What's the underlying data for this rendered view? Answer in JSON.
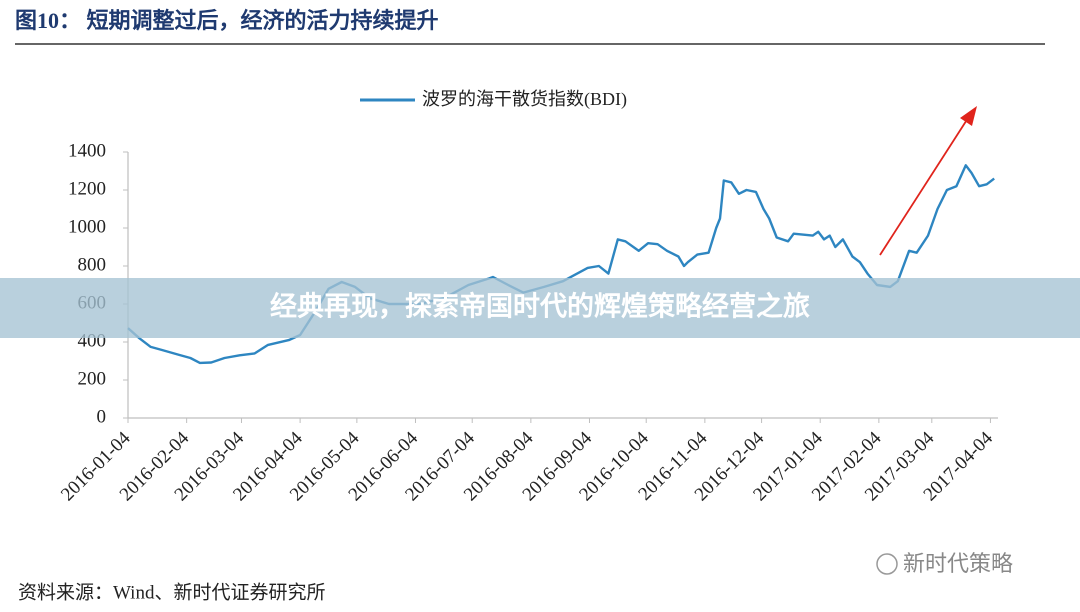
{
  "chart_data": {
    "type": "line",
    "title": "图10：  短期调整过后，经济的活力持续提升",
    "x": [
      "2016-01-04",
      "2016-01-10",
      "2016-01-16",
      "2016-01-22",
      "2016-01-31",
      "2016-02-06",
      "2016-02-11",
      "2016-02-17",
      "2016-02-24",
      "2016-03-03",
      "2016-03-11",
      "2016-03-18",
      "2016-03-29",
      "2016-04-04",
      "2016-04-12",
      "2016-04-19",
      "2016-04-26",
      "2016-05-03",
      "2016-05-11",
      "2016-05-21",
      "2016-06-06",
      "2016-06-19",
      "2016-07-02",
      "2016-07-13",
      "2016-07-15",
      "2016-07-23",
      "2016-07-31",
      "2016-08-11",
      "2016-08-21",
      "2016-09-03",
      "2016-09-09",
      "2016-09-14",
      "2016-09-19",
      "2016-09-23",
      "2016-09-30",
      "2016-10-05",
      "2016-10-10",
      "2016-10-15",
      "2016-10-21",
      "2016-10-24",
      "2016-10-26",
      "2016-10-31",
      "2016-11-06",
      "2016-11-10",
      "2016-11-12",
      "2016-11-14",
      "2016-11-18",
      "2016-11-22",
      "2016-11-26",
      "2016-12-01",
      "2016-12-05",
      "2016-12-08",
      "2016-12-12",
      "2016-12-18",
      "2016-12-21",
      "2016-12-31",
      "2017-01-03",
      "2017-01-06",
      "2017-01-09",
      "2017-01-12",
      "2017-01-16",
      "2017-01-21",
      "2017-01-25",
      "2017-01-29",
      "2017-02-03",
      "2017-02-10",
      "2017-02-14",
      "2017-02-20",
      "2017-02-24",
      "2017-03-02",
      "2017-03-07",
      "2017-03-12",
      "2017-03-17",
      "2017-03-22",
      "2017-03-25",
      "2017-03-29",
      "2017-04-02",
      "2017-04-06"
    ],
    "series": [
      {
        "name": "波罗的海干散货指数(BDI)",
        "color": "#2e86c1",
        "values": [
          473,
          420,
          374,
          358,
          332,
          316,
          290,
          292,
          316,
          330,
          340,
          385,
          410,
          437,
          560,
          680,
          716,
          690,
          630,
          600,
          600,
          630,
          700,
          735,
          742,
          700,
          660,
          690,
          720,
          790,
          800,
          760,
          940,
          930,
          880,
          920,
          915,
          880,
          850,
          800,
          820,
          860,
          870,
          1000,
          1050,
          1250,
          1240,
          1180,
          1200,
          1190,
          1100,
          1050,
          950,
          930,
          970,
          960,
          980,
          940,
          960,
          900,
          940,
          850,
          820,
          760,
          700,
          690,
          720,
          880,
          870,
          960,
          1100,
          1200,
          1220,
          1330,
          1290,
          1220,
          1230,
          1260
        ]
      }
    ],
    "xlim": [
      "2016-01-04",
      "2017-04-08"
    ],
    "xticks": [
      "2016-01-04",
      "2016-02-04",
      "2016-03-04",
      "2016-04-04",
      "2016-05-04",
      "2016-06-04",
      "2016-07-04",
      "2016-08-04",
      "2016-09-04",
      "2016-10-04",
      "2016-11-04",
      "2016-12-04",
      "2017-01-04",
      "2017-02-04",
      "2017-03-04",
      "2017-04-04"
    ],
    "ylim": [
      0,
      1400
    ],
    "yticks": [
      0,
      200,
      400,
      600,
      800,
      1000,
      1200,
      1400
    ],
    "grid": false,
    "legend": "top"
  },
  "source": "资料来源：Wind、新时代证券研究所",
  "watermark": "新时代策略",
  "banner": "经典再现，探索帝国时代的辉煌策略经营之旅"
}
